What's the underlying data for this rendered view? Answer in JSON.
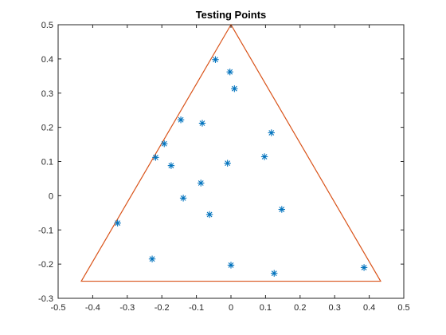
{
  "chart_data": {
    "type": "scatter",
    "title": "Testing Points",
    "xlabel": "",
    "ylabel": "",
    "xlim": [
      -0.5,
      0.5
    ],
    "ylim": [
      -0.3,
      0.5
    ],
    "xticks": [
      "-0.5",
      "-0.4",
      "-0.3",
      "-0.2",
      "-0.1",
      "0",
      "0.1",
      "0.2",
      "0.3",
      "0.4",
      "0.5"
    ],
    "yticks": [
      "-0.3",
      "-0.2",
      "-0.1",
      "0",
      "0.1",
      "0.2",
      "0.3",
      "0.4",
      "0.5"
    ],
    "grid": false,
    "legend": "none",
    "marker": "*",
    "marker_color": "#0072BD",
    "triangle_color": "#D95319",
    "triangle": [
      {
        "x": 0.0,
        "y": 0.5
      },
      {
        "x": -0.433,
        "y": -0.25
      },
      {
        "x": 0.433,
        "y": -0.25
      }
    ],
    "points": [
      {
        "x": -0.045,
        "y": 0.398
      },
      {
        "x": -0.003,
        "y": 0.362
      },
      {
        "x": 0.01,
        "y": 0.313
      },
      {
        "x": -0.145,
        "y": 0.222
      },
      {
        "x": -0.083,
        "y": 0.212
      },
      {
        "x": 0.117,
        "y": 0.184
      },
      {
        "x": -0.193,
        "y": 0.152
      },
      {
        "x": -0.218,
        "y": 0.112
      },
      {
        "x": 0.097,
        "y": 0.114
      },
      {
        "x": -0.173,
        "y": 0.088
      },
      {
        "x": -0.01,
        "y": 0.095
      },
      {
        "x": -0.087,
        "y": 0.037
      },
      {
        "x": -0.138,
        "y": -0.007
      },
      {
        "x": -0.062,
        "y": -0.055
      },
      {
        "x": 0.147,
        "y": -0.04
      },
      {
        "x": -0.328,
        "y": -0.08
      },
      {
        "x": -0.228,
        "y": -0.185
      },
      {
        "x": 0.0,
        "y": -0.203
      },
      {
        "x": 0.125,
        "y": -0.227
      },
      {
        "x": 0.385,
        "y": -0.21
      }
    ]
  }
}
